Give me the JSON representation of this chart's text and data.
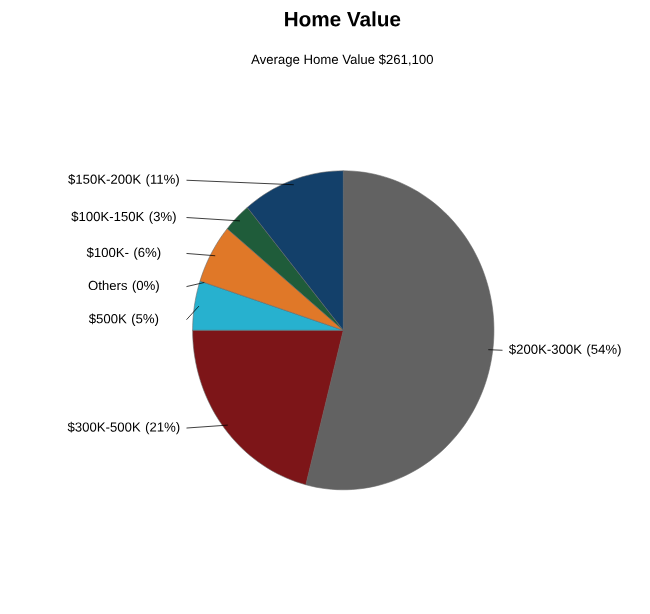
{
  "chart_data": {
    "type": "pie",
    "title": "Home Value",
    "subtitle": "Average Home Value  $261,100",
    "categories": [
      "$200K-300K",
      "$300K-500K",
      "$500K",
      "Others",
      "$100K-",
      "$100K-150K",
      "$150K-200K"
    ],
    "values": [
      54,
      21,
      5,
      0,
      6,
      3,
      11
    ],
    "value_labels": [
      "(54%)",
      "(21%)",
      "(5%)",
      "(0%)",
      "(6%)",
      "(3%)",
      "(11%)"
    ],
    "colors": [
      "#626262",
      "#7d1518",
      "#27b1cf",
      "#9aa63a",
      "#e07828",
      "#1f5c3a",
      "#13406a"
    ]
  }
}
